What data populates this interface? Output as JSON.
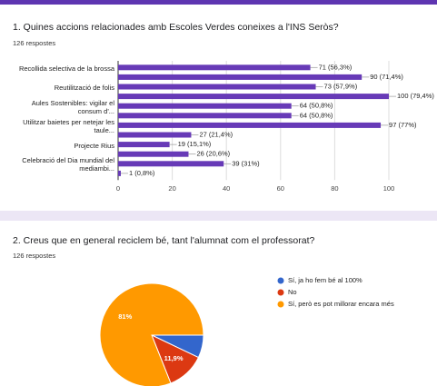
{
  "chart_data": [
    {
      "type": "hbar",
      "title": "1. Quines accions relacionades amb Escoles Verdes coneixes a l'INS Seròs?",
      "subtitle": "126 respostes",
      "categories": [
        "Recollida selectiva de la brossa",
        null,
        "Reutilització de folis",
        null,
        "Aules Sostenibles: vigilar el consum d'...",
        null,
        "Utilitzar baietes per netejar les taule...",
        null,
        "Projecte Rius",
        null,
        "Celebració del Dia mundial del mediambi...",
        null
      ],
      "values": [
        71,
        90,
        73,
        100,
        64,
        64,
        97,
        27,
        19,
        26,
        39,
        1
      ],
      "value_labels": [
        "71 (56,3%)",
        "90 (71,4%)",
        "73 (57,9%)",
        "100 (79,4%)",
        "64 (50,8%)",
        "64 (50,8%)",
        "97 (77%)",
        "27 (21,4%)",
        "19 (15,1%)",
        "26 (20,6%)",
        "39 (31%)",
        "1 (0,8%)"
      ],
      "color": "#673ab7",
      "xlim": [
        0,
        100
      ],
      "xticks": [
        0,
        20,
        40,
        60,
        80,
        100
      ],
      "grid": true
    },
    {
      "type": "pie",
      "title": "2. Creus que en general reciclem bé, tant l'alumnat com el professorat?",
      "subtitle": "126 respostes",
      "categories": [
        "Sí, ja ho fem bé al 100%",
        "No",
        "Sí, però es pot millorar encara més"
      ],
      "values": [
        7.1,
        11.9,
        81
      ],
      "value_labels": [
        null,
        "11,9%",
        "81%"
      ],
      "colors": [
        "#3366cc",
        "#dc3912",
        "#ff9900"
      ]
    }
  ]
}
